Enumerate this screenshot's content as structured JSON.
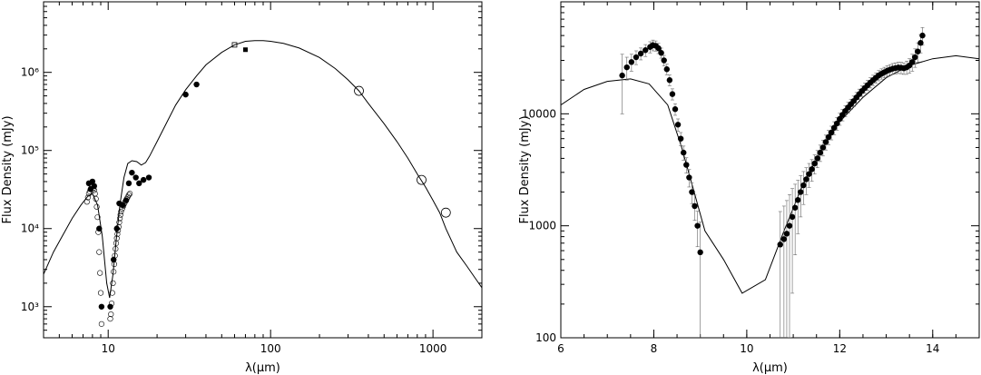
{
  "chart_data": [
    {
      "type": "scatter",
      "xlabel": "λ(μm)",
      "ylabel": "Flux Density (mJy)",
      "x_scale": "log",
      "y_scale": "log",
      "xlim": [
        4,
        2000
      ],
      "ylim": [
        400,
        8000000
      ],
      "x_ticks": [
        {
          "value": 10,
          "label": "10"
        },
        {
          "value": 100,
          "label": "100"
        },
        {
          "value": 1000,
          "label": "1000"
        }
      ],
      "y_ticks": [
        {
          "value": 1000,
          "label": "10³"
        },
        {
          "value": 10000,
          "label": "10⁴"
        },
        {
          "value": 100000,
          "label": "10⁵"
        },
        {
          "value": 1000000,
          "label": "10⁶"
        }
      ],
      "series": [
        {
          "style": "model-line",
          "x": [
            4,
            4.6,
            5.3,
            6,
            6.8,
            7.5,
            8,
            8.6,
            9.2,
            9.8,
            10.2,
            10.7,
            11.2,
            11.8,
            12.5,
            13.2,
            14,
            15,
            16,
            17,
            18,
            20,
            23,
            26,
            30,
            35,
            40,
            50,
            60,
            70,
            80,
            90,
            100,
            120,
            150,
            200,
            250,
            300,
            350,
            400,
            500,
            600,
            700,
            800,
            900,
            1000,
            1100,
            1200,
            1300,
            1400,
            1600,
            1800,
            2000
          ],
          "y": [
            2600,
            5000,
            8500,
            13500,
            20000,
            26000,
            28000,
            20000,
            8000,
            2000,
            1300,
            2600,
            7000,
            20000,
            45000,
            68000,
            74000,
            72000,
            65000,
            70000,
            85000,
            130000,
            230000,
            380000,
            600000,
            900000,
            1250000,
            1800000,
            2250000,
            2500000,
            2550000,
            2550000,
            2500000,
            2350000,
            2050000,
            1550000,
            1120000,
            800000,
            580000,
            400000,
            220000,
            130000,
            80000,
            50000,
            34000,
            23000,
            16000,
            10000,
            7000,
            5000,
            3400,
            2400,
            1750
          ]
        },
        {
          "style": "filled-circle",
          "x": [
            7.6,
            7.8,
            8.0,
            8.2,
            8.8,
            9.1,
            10.3,
            10.8,
            11.3,
            11.7,
            12.3,
            12.9,
            13.4,
            14.0,
            14.8,
            15.5,
            16.5,
            17.8,
            30,
            35
          ],
          "y": [
            38000,
            32000,
            40000,
            35000,
            10000,
            1000,
            1000,
            4000,
            10000,
            21000,
            20000,
            23000,
            38000,
            52000,
            45000,
            38000,
            42000,
            45000,
            520000,
            700000
          ]
        },
        {
          "style": "filled-square",
          "x": [
            70
          ],
          "y": [
            1950000
          ]
        },
        {
          "style": "open-square",
          "x": [
            60
          ],
          "y": [
            2250000
          ]
        },
        {
          "style": "open-circle-small",
          "x": [
            7.4,
            7.5,
            7.6,
            7.7,
            7.8,
            7.9,
            8.0,
            8.1,
            8.2,
            8.3,
            8.4,
            8.5,
            8.6,
            8.7,
            8.8,
            8.9,
            9.0,
            9.1,
            10.3,
            10.4,
            10.5,
            10.6,
            10.7,
            10.8,
            10.9,
            11.0,
            11.1,
            11.2,
            11.3,
            11.4,
            11.5,
            11.6,
            11.7,
            11.8,
            11.9,
            12.0,
            12.2,
            12.4,
            12.6,
            12.8,
            13.0,
            13.2,
            13.4,
            13.6
          ],
          "y": [
            22000,
            25000,
            28000,
            30000,
            32000,
            34000,
            35000,
            33000,
            31000,
            28000,
            24000,
            19000,
            14000,
            9000,
            5000,
            2700,
            1500,
            600,
            700,
            800,
            1100,
            1500,
            2000,
            2800,
            3500,
            4500,
            5500,
            6500,
            7500,
            8500,
            9500,
            10500,
            12000,
            13500,
            15000,
            16500,
            18000,
            19500,
            21000,
            22500,
            24000,
            25500,
            27000,
            28000
          ]
        },
        {
          "style": "open-circle-large",
          "x": [
            350,
            850,
            1200
          ],
          "y": [
            580000,
            42000,
            16000
          ]
        }
      ]
    },
    {
      "type": "scatter",
      "xlabel": "λ(μm)",
      "ylabel": "Flux Density (mJy)",
      "x_scale": "linear",
      "y_scale": "log",
      "xlim": [
        6,
        15
      ],
      "ylim": [
        100,
        100000
      ],
      "x_ticks": [
        {
          "value": 6,
          "label": "6"
        },
        {
          "value": 8,
          "label": "8"
        },
        {
          "value": 10,
          "label": "10"
        },
        {
          "value": 12,
          "label": "12"
        },
        {
          "value": 14,
          "label": "14"
        }
      ],
      "y_ticks": [
        {
          "value": 100,
          "label": "100"
        },
        {
          "value": 1000,
          "label": "1000"
        },
        {
          "value": 10000,
          "label": "10000"
        }
      ],
      "series": [
        {
          "style": "model-line",
          "x": [
            6.0,
            6.5,
            7.0,
            7.5,
            7.9,
            8.3,
            8.6,
            8.9,
            9.1,
            9.5,
            9.9,
            10.4,
            10.8,
            11.2,
            11.6,
            12.0,
            12.5,
            13.0,
            13.5,
            14.0,
            14.5,
            15.0
          ],
          "y": [
            12000,
            16500,
            19500,
            20500,
            18500,
            12000,
            5000,
            1800,
            900,
            500,
            250,
            330,
            900,
            2300,
            4700,
            8500,
            14000,
            21000,
            27000,
            31000,
            33000,
            31000
          ]
        },
        {
          "style": "filled-circle-errorbars",
          "x": [
            7.32,
            7.42,
            7.52,
            7.62,
            7.72,
            7.82,
            7.92,
            7.98,
            8.04,
            8.1,
            8.16,
            8.22,
            8.28,
            8.34,
            8.4,
            8.46,
            8.52,
            8.58,
            8.64,
            8.7,
            8.76,
            8.82,
            8.88,
            8.94,
            9.0,
            10.72,
            10.8,
            10.86,
            10.92,
            10.98,
            11.04,
            11.1,
            11.16,
            11.22,
            11.28,
            11.34,
            11.4,
            11.46,
            11.52,
            11.58,
            11.64,
            11.7,
            11.76,
            11.82,
            11.88,
            11.94,
            12.0,
            12.06,
            12.12,
            12.18,
            12.24,
            12.3,
            12.36,
            12.42,
            12.48,
            12.54,
            12.6,
            12.66,
            12.72,
            12.78,
            12.84,
            12.9,
            12.96,
            13.02,
            13.08,
            13.14,
            13.2,
            13.26,
            13.32,
            13.38,
            13.44,
            13.5,
            13.56,
            13.62,
            13.68,
            13.74,
            13.78
          ],
          "y": [
            22000,
            26000,
            29000,
            32000,
            34500,
            37000,
            39500,
            41000,
            40500,
            38500,
            35000,
            30000,
            25000,
            20000,
            15000,
            11000,
            8000,
            6000,
            4500,
            3500,
            2700,
            2000,
            1500,
            1000,
            580,
            680,
            760,
            850,
            1000,
            1200,
            1450,
            1700,
            2000,
            2300,
            2600,
            2900,
            3200,
            3600,
            4000,
            4500,
            5000,
            5600,
            6200,
            6800,
            7500,
            8200,
            9000,
            9800,
            10600,
            11400,
            12200,
            13000,
            14000,
            15000,
            16000,
            17000,
            18000,
            19000,
            20000,
            21000,
            22000,
            22800,
            23500,
            24200,
            24800,
            25300,
            25600,
            25900,
            25800,
            25500,
            26000,
            27000,
            29000,
            32000,
            36000,
            43000,
            50000
          ],
          "err": [
            12000,
            6000,
            5000,
            4500,
            4200,
            4500,
            4500,
            4500,
            4200,
            4000,
            3600,
            3200,
            2700,
            2200,
            1700,
            1300,
            1000,
            800,
            650,
            550,
            480,
            420,
            380,
            350,
            500,
            660,
            740,
            830,
            900,
            950,
            900,
            850,
            800,
            750,
            700,
            700,
            700,
            700,
            700,
            750,
            800,
            850,
            900,
            950,
            1000,
            1050,
            1100,
            1150,
            1200,
            1250,
            1300,
            1400,
            1500,
            1600,
            1700,
            1800,
            1900,
            2000,
            2100,
            2200,
            2300,
            2400,
            2500,
            2600,
            2700,
            2800,
            2900,
            3000,
            3000,
            3000,
            3500,
            4000,
            5000,
            6000,
            7000,
            8000,
            9000
          ]
        }
      ]
    }
  ]
}
